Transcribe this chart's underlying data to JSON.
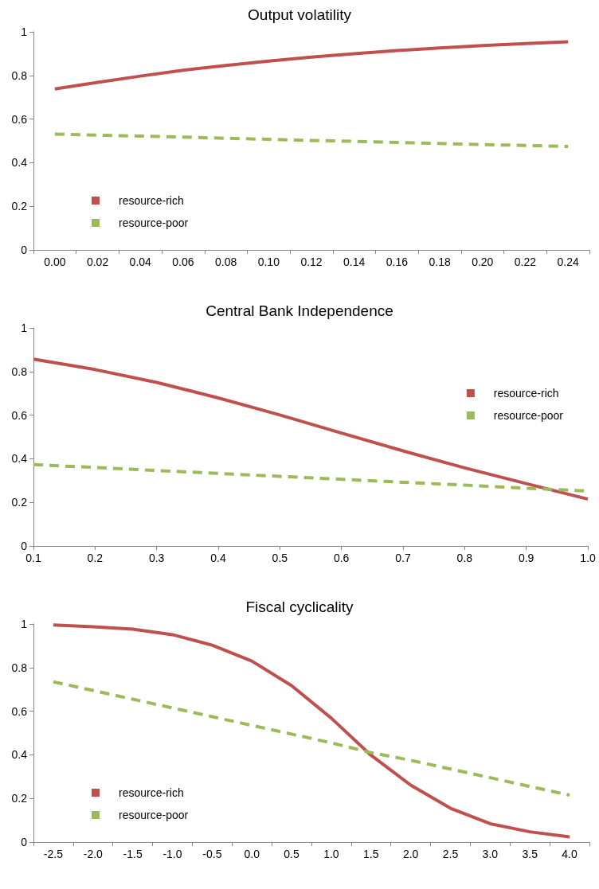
{
  "chart_data": [
    {
      "type": "line",
      "title": "Output volatility",
      "categories": [
        "0.00",
        "0.02",
        "0.04",
        "0.06",
        "0.08",
        "0.10",
        "0.12",
        "0.14",
        "0.16",
        "0.18",
        "0.20",
        "0.22",
        "0.24"
      ],
      "ylim": [
        0,
        1
      ],
      "yticks": [
        0,
        0.2,
        0.4,
        0.6,
        0.8,
        1
      ],
      "grid": false,
      "legend": "bottom left",
      "marker": "none",
      "series": [
        {
          "name": "resource-rich",
          "color": "#c0504d",
          "line_style": "solid",
          "values": [
            0.738,
            0.768,
            0.797,
            0.824,
            0.846,
            0.866,
            0.884,
            0.9,
            0.914,
            0.926,
            0.937,
            0.946,
            0.954
          ]
        },
        {
          "name": "resource-poor",
          "color": "#9bbb59",
          "line_style": "dashed",
          "values": [
            0.531,
            0.526,
            0.522,
            0.517,
            0.512,
            0.507,
            0.502,
            0.498,
            0.493,
            0.488,
            0.483,
            0.479,
            0.474
          ]
        }
      ]
    },
    {
      "type": "line",
      "title": "Central Bank Independence",
      "x": [
        0.1,
        0.2,
        0.3,
        0.4,
        0.5,
        0.6,
        0.7,
        0.8,
        0.9,
        1.0
      ],
      "xlim": [
        0.1,
        1.0
      ],
      "xticks": [
        0.1,
        0.2,
        0.3,
        0.4,
        0.5,
        0.6,
        0.7,
        0.8,
        0.9,
        {
          "value": 1.0,
          "label": "1.0"
        }
      ],
      "ylim": [
        0,
        1
      ],
      "yticks": [
        0,
        0.2,
        0.4,
        0.6,
        0.8,
        1
      ],
      "grid": false,
      "legend": "top right",
      "marker": "none",
      "series": [
        {
          "name": "resource-rich",
          "color": "#c0504d",
          "line_style": "solid",
          "values": [
            0.857,
            0.809,
            0.75,
            0.679,
            0.601,
            0.518,
            0.436,
            0.358,
            0.286,
            0.215
          ]
        },
        {
          "name": "resource-poor",
          "color": "#9bbb59",
          "line_style": "dashed",
          "values": [
            0.373,
            0.36,
            0.346,
            0.333,
            0.319,
            0.306,
            0.292,
            0.279,
            0.265,
            0.252
          ]
        }
      ]
    },
    {
      "type": "line",
      "title": "Fiscal cyclicality",
      "categories": [
        "-2.5",
        "-2.0",
        "-1.5",
        "-1.0",
        "-0.5",
        "0.0",
        "0.5",
        "1.0",
        "1.5",
        "2.0",
        "2.5",
        "3.0",
        "3.5",
        "4.0"
      ],
      "ylim": [
        0,
        1
      ],
      "yticks": [
        0,
        0.2,
        0.4,
        0.6,
        0.8,
        1
      ],
      "grid": false,
      "legend": "bottom left",
      "marker": "none",
      "series": [
        {
          "name": "resource-rich",
          "color": "#c0504d",
          "line_style": "solid",
          "values": [
            0.995,
            0.987,
            0.976,
            0.951,
            0.903,
            0.83,
            0.717,
            0.568,
            0.398,
            0.261,
            0.155,
            0.084,
            0.047,
            0.024
          ]
        },
        {
          "name": "resource-poor",
          "color": "#9bbb59",
          "line_style": "dashed",
          "values": [
            0.735,
            0.695,
            0.655,
            0.615,
            0.575,
            0.535,
            0.495,
            0.455,
            0.41,
            0.375,
            0.335,
            0.295,
            0.255,
            0.215
          ]
        }
      ]
    }
  ]
}
